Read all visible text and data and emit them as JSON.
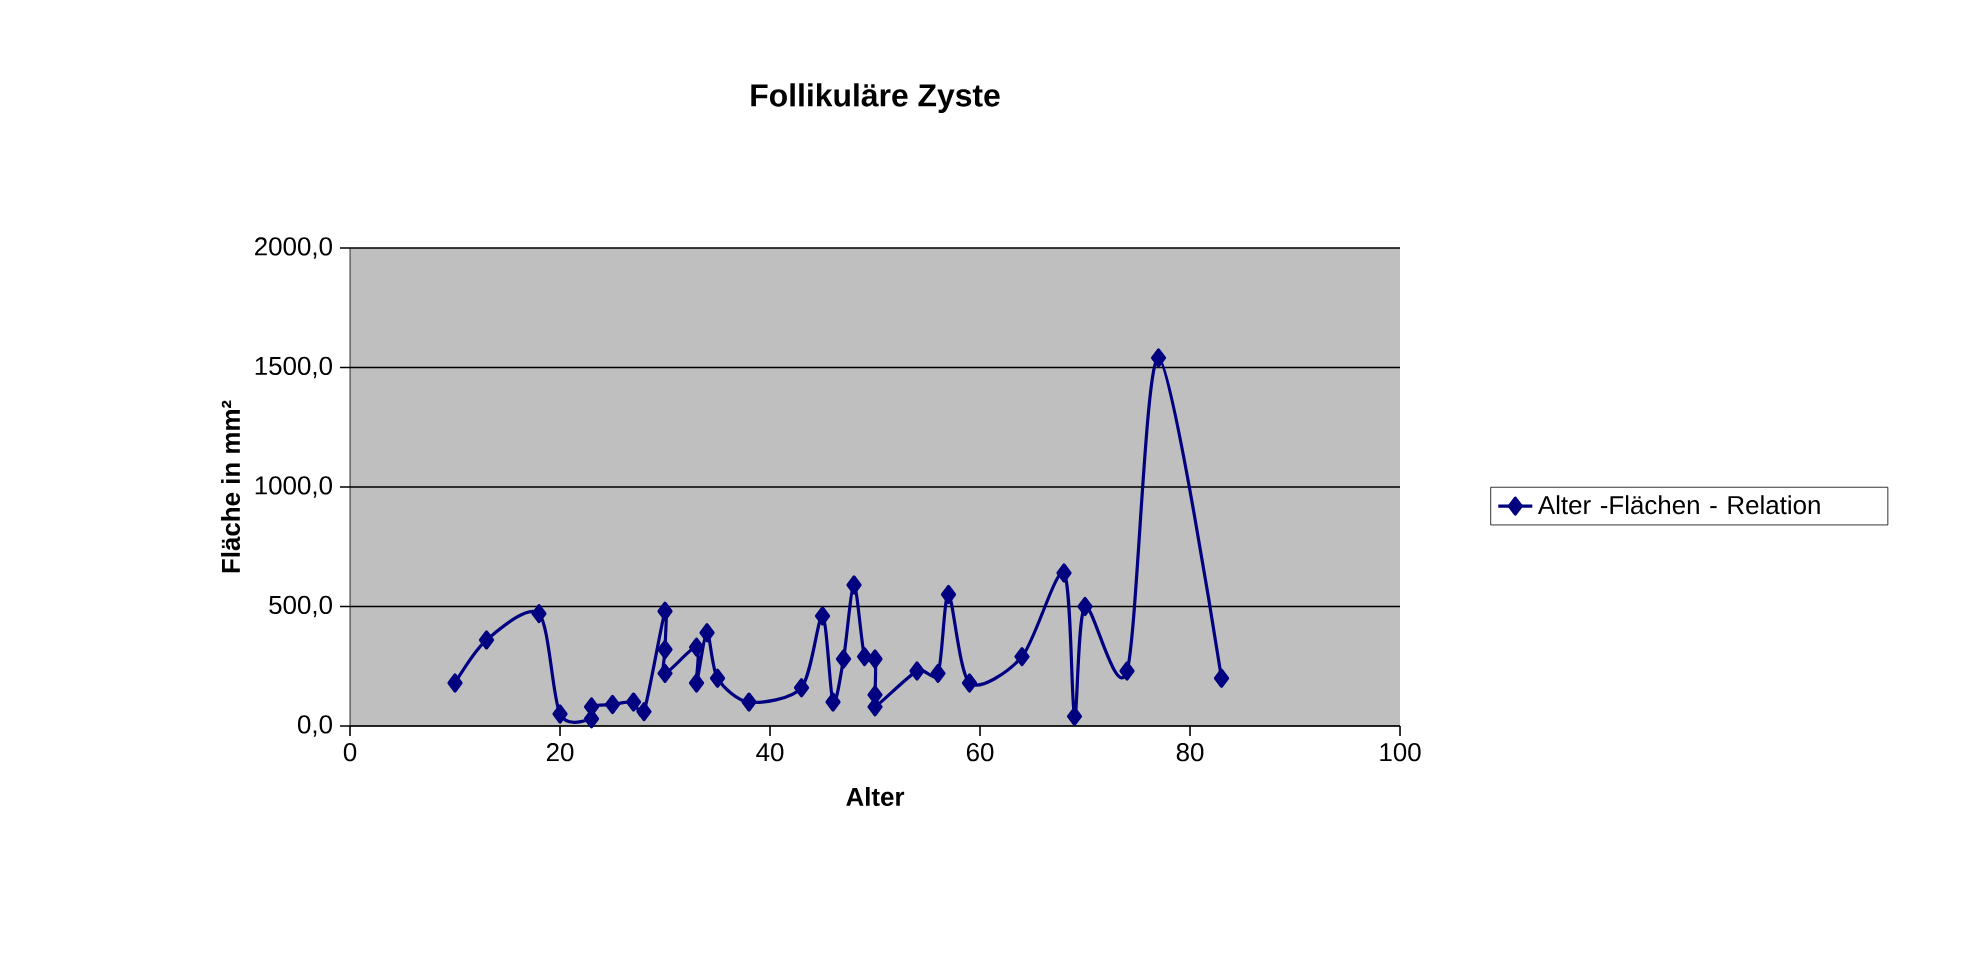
{
  "chart_data": {
    "type": "line",
    "title": "Follikuläre Zyste",
    "xlabel": "Alter",
    "ylabel": "Fläche in mm²",
    "x": [
      10,
      13,
      18,
      20,
      23,
      23,
      25,
      27,
      28,
      30,
      30,
      30,
      33,
      33,
      34,
      35,
      38,
      43,
      45,
      46,
      47,
      48,
      49,
      50,
      50,
      50,
      54,
      56,
      57,
      59,
      64,
      68,
      69,
      70,
      74,
      77,
      83
    ],
    "series": [
      {
        "name": "Alter -Flächen - Relation",
        "color": "#000080",
        "values": [
          180,
          360,
          470,
          50,
          30,
          80,
          90,
          100,
          60,
          480,
          320,
          220,
          330,
          180,
          390,
          200,
          100,
          160,
          460,
          100,
          280,
          590,
          290,
          280,
          130,
          80,
          230,
          220,
          550,
          180,
          290,
          640,
          40,
          500,
          230,
          1540,
          200
        ]
      }
    ],
    "xlim": [
      0,
      100
    ],
    "xticks": [
      0,
      20,
      40,
      60,
      80,
      100
    ],
    "ylim": [
      0,
      2000
    ],
    "yticks": [
      {
        "value": 0,
        "label": "0,0"
      },
      {
        "value": 500,
        "label": "500,0"
      },
      {
        "value": 1000,
        "label": "1000,0"
      },
      {
        "value": 1500,
        "label": "1500,0"
      },
      {
        "value": 2000,
        "label": "2000,0"
      }
    ],
    "grid": "y",
    "legend": "right",
    "marker": "diamond",
    "line_style": "solid"
  }
}
